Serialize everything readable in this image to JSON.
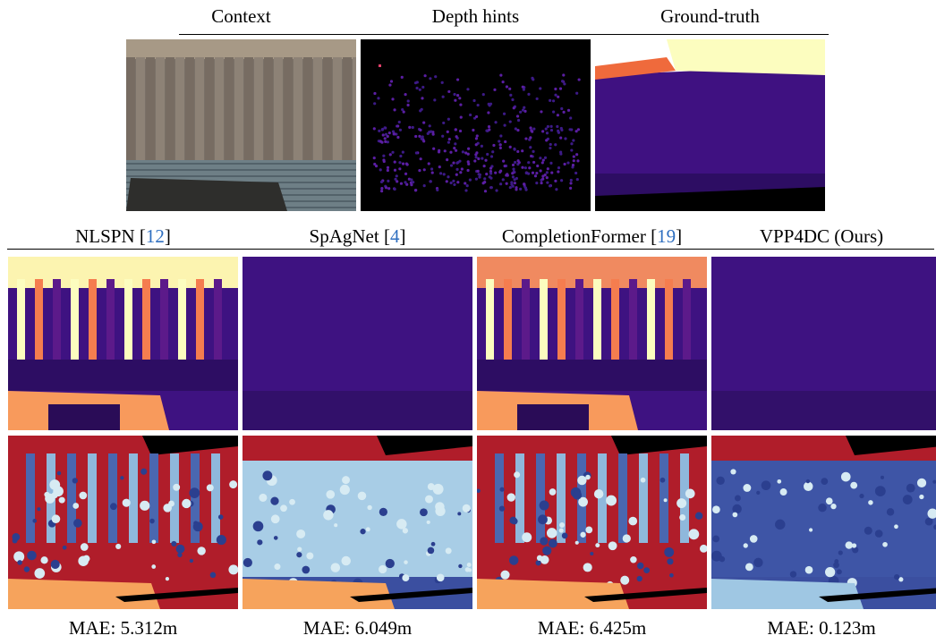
{
  "header_row": {
    "columns": [
      "Context",
      "Depth hints",
      "Ground-truth"
    ]
  },
  "methods": [
    {
      "prefix": "NLSPN [",
      "ref": "12",
      "suffix": "]",
      "mae": "MAE: 5.312m"
    },
    {
      "prefix": "SpAgNet [",
      "ref": "4",
      "suffix": "]",
      "mae": "MAE: 6.049m"
    },
    {
      "prefix": "CompletionFormer [",
      "ref": "19",
      "suffix": "]",
      "mae": "MAE: 6.425m"
    },
    {
      "label": "VPP4DC (Ours)",
      "mae": "MAE: 0.123m"
    }
  ]
}
